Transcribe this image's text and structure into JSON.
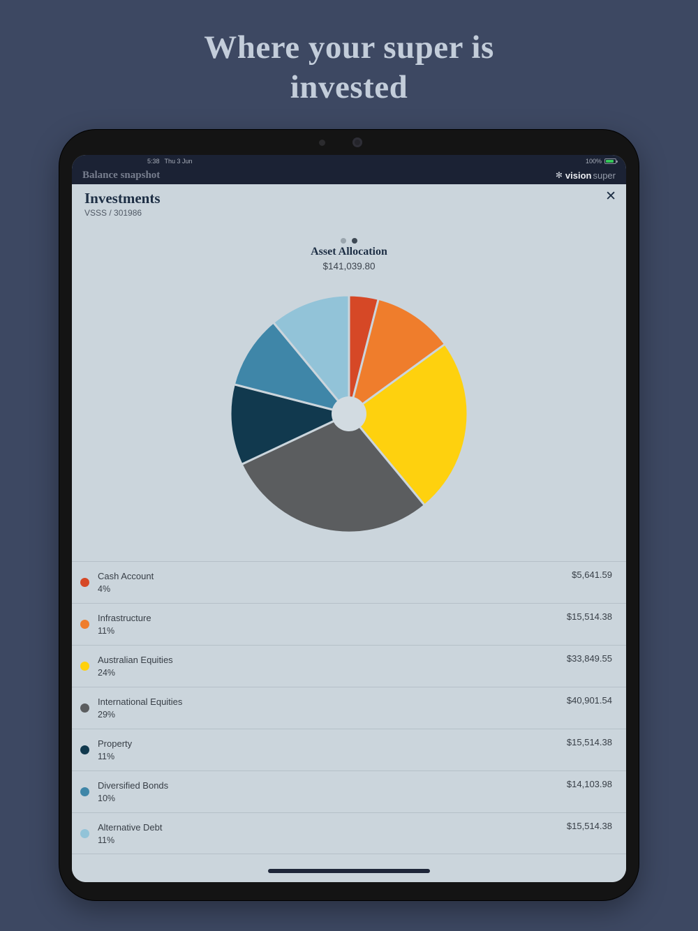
{
  "page": {
    "heading_line1": "Where your super is",
    "heading_line2": "invested"
  },
  "statusbar": {
    "time": "5:38",
    "date": "Thu 3 Jun",
    "battery": "100%"
  },
  "header": {
    "title": "Balance snapshot",
    "brand_icon": "✻",
    "brand_primary": "vision",
    "brand_secondary": "super"
  },
  "modal": {
    "title": "Investments",
    "subtitle": "VSSS / 301986",
    "close_icon": "✕"
  },
  "chart_data": {
    "type": "pie",
    "title": "Asset Allocation",
    "total": "$141,039.80",
    "start_angle_deg": -90,
    "direction": "clockwise",
    "segments": [
      {
        "label": "Cash Account",
        "percent": 4,
        "amount": "$5,641.59",
        "color": "#d64826"
      },
      {
        "label": "Infrastructure",
        "percent": 11,
        "amount": "$15,514.38",
        "color": "#ef7d2c"
      },
      {
        "label": "Australian Equities",
        "percent": 24,
        "amount": "$33,849.55",
        "color": "#fed10e"
      },
      {
        "label": "International Equities",
        "percent": 29,
        "amount": "$40,901.54",
        "color": "#5b5d5f"
      },
      {
        "label": "Property",
        "percent": 11,
        "amount": "$15,514.38",
        "color": "#11394e"
      },
      {
        "label": "Diversified Bonds",
        "percent": 10,
        "amount": "$14,103.98",
        "color": "#3f86a8"
      },
      {
        "label": "Alternative Debt",
        "percent": 11,
        "amount": "$15,514.38",
        "color": "#92c3d8"
      }
    ]
  }
}
